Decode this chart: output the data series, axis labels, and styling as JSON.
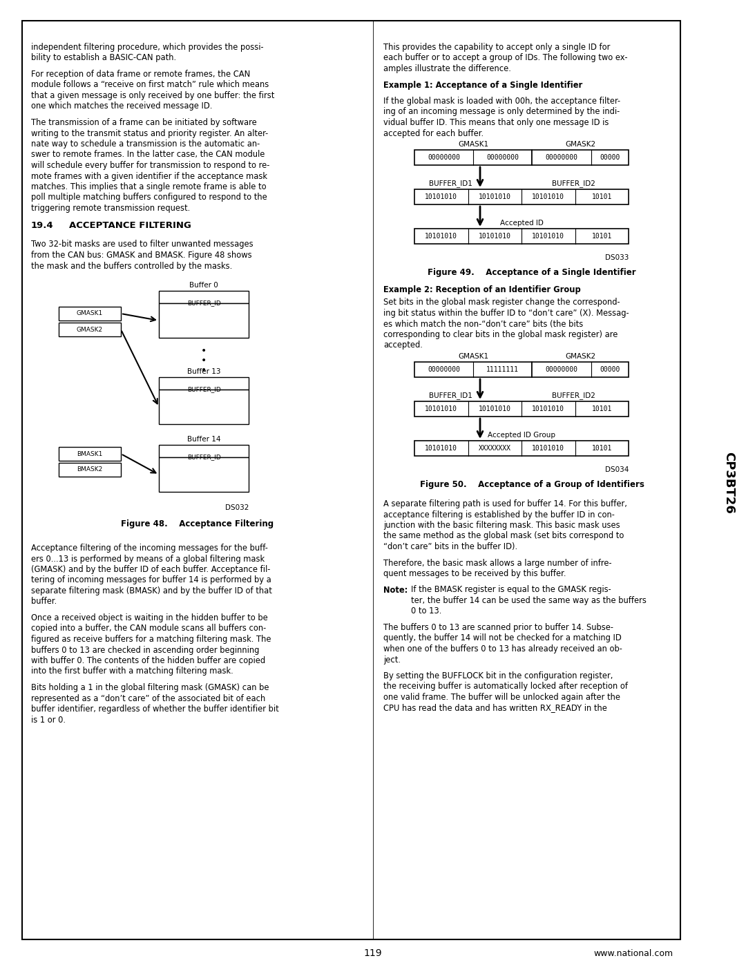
{
  "page_bg": "#ffffff",
  "page_number": "119",
  "website": "www.national.com",
  "sidebar_text": "CP3BT26"
}
